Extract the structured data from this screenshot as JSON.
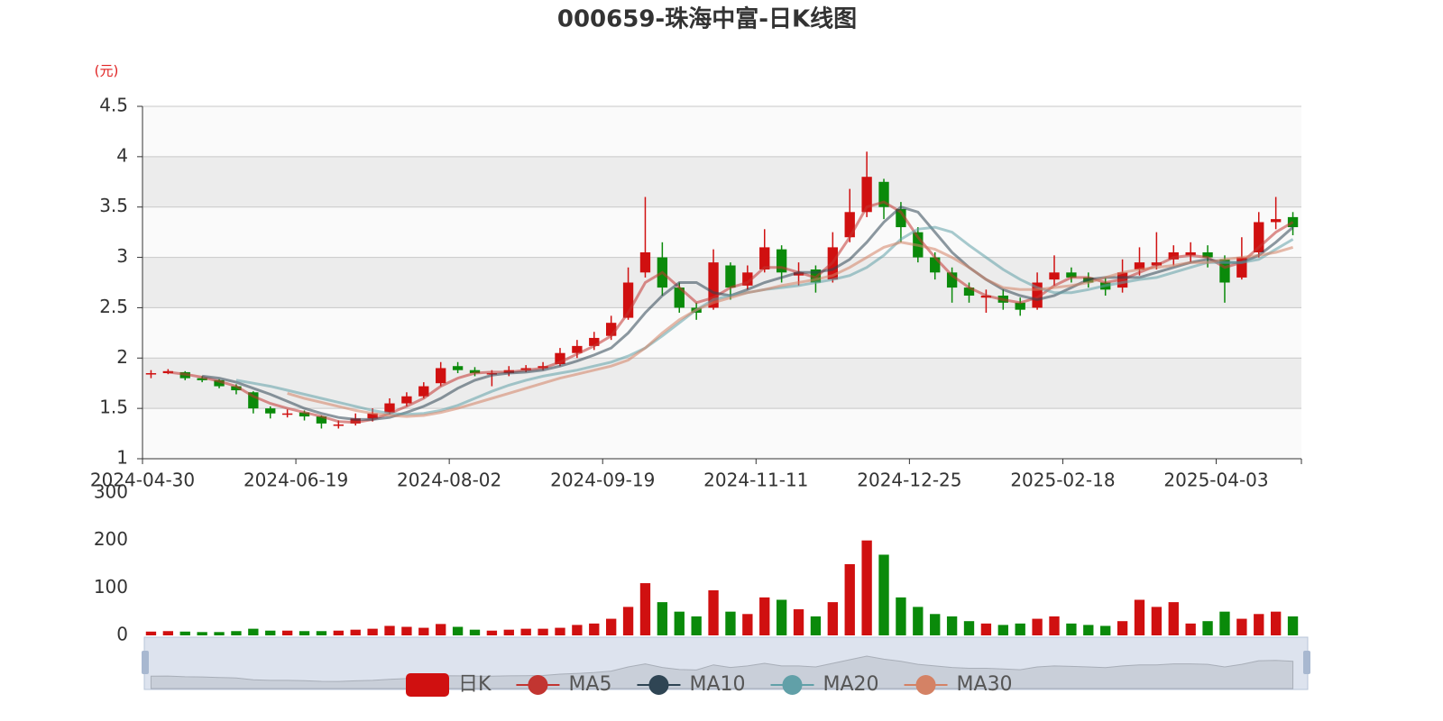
{
  "chart_data": {
    "type": "candlestick",
    "title": "000659-珠海中富-日K线图",
    "unit_label": "(元)",
    "categories": [
      "2024-04-30",
      null,
      null,
      null,
      null,
      null,
      null,
      null,
      null,
      "2024-06-19",
      null,
      null,
      null,
      null,
      null,
      null,
      null,
      null,
      "2024-08-02",
      null,
      null,
      null,
      null,
      null,
      null,
      null,
      null,
      "2024-09-19",
      null,
      null,
      null,
      null,
      null,
      null,
      null,
      null,
      "2024-11-11",
      null,
      null,
      null,
      null,
      null,
      null,
      null,
      null,
      "2024-12-25",
      null,
      null,
      null,
      null,
      null,
      null,
      null,
      null,
      "2025-02-18",
      null,
      null,
      null,
      null,
      null,
      null,
      null,
      null,
      "2025-04-03",
      null,
      null,
      null,
      null
    ],
    "ylim": [
      1,
      4.5
    ],
    "yticks": [
      1,
      1.5,
      2,
      2.5,
      3,
      3.5,
      4,
      4.5
    ],
    "grid": true,
    "candles": {
      "name": "日K",
      "color_up": "#d01010",
      "color_down": "#0a8a0a",
      "values": [
        [
          1.84,
          1.85,
          1.8,
          1.88
        ],
        [
          1.85,
          1.87,
          1.84,
          1.89
        ],
        [
          1.86,
          1.8,
          1.78,
          1.87
        ],
        [
          1.8,
          1.78,
          1.76,
          1.82
        ],
        [
          1.78,
          1.72,
          1.7,
          1.79
        ],
        [
          1.72,
          1.68,
          1.64,
          1.74
        ],
        [
          1.66,
          1.5,
          1.45,
          1.67
        ],
        [
          1.5,
          1.45,
          1.4,
          1.52
        ],
        [
          1.44,
          1.45,
          1.41,
          1.49
        ],
        [
          1.46,
          1.42,
          1.38,
          1.48
        ],
        [
          1.42,
          1.35,
          1.3,
          1.43
        ],
        [
          1.33,
          1.34,
          1.3,
          1.38
        ],
        [
          1.35,
          1.4,
          1.33,
          1.45
        ],
        [
          1.4,
          1.45,
          1.37,
          1.5
        ],
        [
          1.46,
          1.55,
          1.44,
          1.6
        ],
        [
          1.55,
          1.62,
          1.52,
          1.66
        ],
        [
          1.62,
          1.72,
          1.6,
          1.76
        ],
        [
          1.75,
          1.9,
          1.72,
          1.96
        ],
        [
          1.92,
          1.88,
          1.85,
          1.96
        ],
        [
          1.88,
          1.85,
          1.82,
          1.91
        ],
        [
          1.84,
          1.85,
          1.72,
          1.88
        ],
        [
          1.85,
          1.88,
          1.82,
          1.92
        ],
        [
          1.88,
          1.9,
          1.86,
          1.93
        ],
        [
          1.9,
          1.92,
          1.88,
          1.96
        ],
        [
          1.94,
          2.05,
          1.92,
          2.1
        ],
        [
          2.05,
          2.12,
          2.0,
          2.18
        ],
        [
          2.12,
          2.2,
          2.08,
          2.26
        ],
        [
          2.22,
          2.35,
          2.18,
          2.42
        ],
        [
          2.4,
          2.75,
          2.38,
          2.9
        ],
        [
          2.85,
          3.05,
          2.8,
          3.6
        ],
        [
          3.0,
          2.7,
          2.62,
          3.15
        ],
        [
          2.7,
          2.5,
          2.45,
          2.75
        ],
        [
          2.5,
          2.45,
          2.38,
          2.55
        ],
        [
          2.5,
          2.95,
          2.48,
          3.08
        ],
        [
          2.92,
          2.7,
          2.58,
          2.95
        ],
        [
          2.72,
          2.85,
          2.68,
          2.92
        ],
        [
          2.88,
          3.1,
          2.85,
          3.28
        ],
        [
          3.08,
          2.85,
          2.75,
          3.12
        ],
        [
          2.82,
          2.85,
          2.72,
          2.95
        ],
        [
          2.88,
          2.75,
          2.65,
          2.92
        ],
        [
          2.78,
          3.1,
          2.75,
          3.25
        ],
        [
          3.2,
          3.45,
          3.15,
          3.68
        ],
        [
          3.45,
          3.8,
          3.4,
          4.05
        ],
        [
          3.75,
          3.5,
          3.38,
          3.78
        ],
        [
          3.48,
          3.3,
          3.15,
          3.55
        ],
        [
          3.25,
          3.0,
          2.95,
          3.3
        ],
        [
          3.0,
          2.85,
          2.78,
          3.05
        ],
        [
          2.85,
          2.7,
          2.55,
          2.9
        ],
        [
          2.7,
          2.62,
          2.55,
          2.75
        ],
        [
          2.6,
          2.62,
          2.45,
          2.68
        ],
        [
          2.62,
          2.55,
          2.48,
          2.68
        ],
        [
          2.55,
          2.48,
          2.42,
          2.6
        ],
        [
          2.5,
          2.75,
          2.48,
          2.85
        ],
        [
          2.78,
          2.85,
          2.72,
          3.02
        ],
        [
          2.85,
          2.8,
          2.75,
          2.9
        ],
        [
          2.8,
          2.75,
          2.7,
          2.85
        ],
        [
          2.75,
          2.68,
          2.62,
          2.8
        ],
        [
          2.7,
          2.85,
          2.65,
          2.98
        ],
        [
          2.88,
          2.95,
          2.82,
          3.1
        ],
        [
          2.92,
          2.95,
          2.88,
          3.25
        ],
        [
          2.98,
          3.05,
          2.92,
          3.12
        ],
        [
          3.02,
          3.05,
          2.95,
          3.15
        ],
        [
          3.05,
          3.0,
          2.9,
          3.12
        ],
        [
          2.98,
          2.75,
          2.55,
          3.02
        ],
        [
          2.8,
          3.0,
          2.78,
          3.2
        ],
        [
          3.05,
          3.35,
          3.0,
          3.45
        ],
        [
          3.35,
          3.38,
          3.28,
          3.6
        ],
        [
          3.4,
          3.3,
          3.22,
          3.45
        ]
      ]
    },
    "series": [
      {
        "name": "MA5",
        "color": "#c23531",
        "values": [
          null,
          1.86,
          1.84,
          1.81,
          1.77,
          1.72,
          1.62,
          1.55,
          1.5,
          1.46,
          1.42,
          1.37,
          1.36,
          1.39,
          1.45,
          1.52,
          1.6,
          1.72,
          1.8,
          1.85,
          1.86,
          1.86,
          1.88,
          1.9,
          1.96,
          2.04,
          2.12,
          2.22,
          2.45,
          2.75,
          2.85,
          2.7,
          2.55,
          2.6,
          2.7,
          2.75,
          2.9,
          2.9,
          2.85,
          2.8,
          2.95,
          3.2,
          3.5,
          3.55,
          3.45,
          3.2,
          3.0,
          2.82,
          2.7,
          2.62,
          2.58,
          2.55,
          2.6,
          2.72,
          2.8,
          2.8,
          2.75,
          2.78,
          2.85,
          2.92,
          3.0,
          3.02,
          3.0,
          2.9,
          2.95,
          3.1,
          3.25,
          3.35
        ]
      },
      {
        "name": "MA10",
        "color": "#2f4554",
        "values": [
          null,
          null,
          null,
          1.82,
          1.8,
          1.76,
          1.7,
          1.64,
          1.57,
          1.5,
          1.45,
          1.41,
          1.39,
          1.39,
          1.41,
          1.46,
          1.52,
          1.6,
          1.7,
          1.78,
          1.83,
          1.85,
          1.86,
          1.88,
          1.92,
          1.97,
          2.03,
          2.1,
          2.25,
          2.45,
          2.62,
          2.75,
          2.75,
          2.65,
          2.62,
          2.68,
          2.75,
          2.8,
          2.85,
          2.85,
          2.88,
          2.98,
          3.15,
          3.35,
          3.5,
          3.45,
          3.25,
          3.05,
          2.9,
          2.78,
          2.68,
          2.62,
          2.58,
          2.62,
          2.7,
          2.78,
          2.8,
          2.8,
          2.8,
          2.85,
          2.9,
          2.95,
          2.98,
          2.95,
          2.95,
          3.02,
          3.15,
          3.3
        ]
      },
      {
        "name": "MA20",
        "color": "#61a0a8",
        "values": [
          null,
          null,
          null,
          null,
          null,
          1.78,
          1.75,
          1.72,
          1.68,
          1.64,
          1.6,
          1.56,
          1.52,
          1.48,
          1.45,
          1.44,
          1.45,
          1.48,
          1.53,
          1.6,
          1.67,
          1.73,
          1.78,
          1.82,
          1.85,
          1.88,
          1.92,
          1.96,
          2.02,
          2.1,
          2.22,
          2.35,
          2.48,
          2.58,
          2.62,
          2.65,
          2.68,
          2.7,
          2.72,
          2.75,
          2.78,
          2.82,
          2.9,
          3.02,
          3.18,
          3.28,
          3.3,
          3.25,
          3.12,
          3.0,
          2.88,
          2.78,
          2.7,
          2.65,
          2.65,
          2.68,
          2.72,
          2.75,
          2.78,
          2.8,
          2.85,
          2.9,
          2.95,
          2.95,
          2.95,
          2.98,
          3.08,
          3.18
        ]
      },
      {
        "name": "MA30",
        "color": "#d48265",
        "values": [
          null,
          null,
          null,
          null,
          null,
          null,
          null,
          null,
          1.65,
          1.6,
          1.56,
          1.52,
          1.48,
          1.45,
          1.43,
          1.42,
          1.43,
          1.46,
          1.5,
          1.55,
          1.6,
          1.65,
          1.7,
          1.75,
          1.8,
          1.84,
          1.88,
          1.92,
          1.98,
          2.1,
          2.25,
          2.38,
          2.48,
          2.55,
          2.6,
          2.65,
          2.68,
          2.72,
          2.75,
          2.78,
          2.82,
          2.9,
          3.0,
          3.1,
          3.15,
          3.12,
          3.08,
          3.0,
          2.9,
          2.78,
          2.7,
          2.68,
          2.68,
          2.7,
          2.72,
          2.75,
          2.8,
          2.85,
          2.88,
          2.9,
          2.92,
          2.95,
          2.95,
          2.98,
          3.0,
          3.02,
          3.05,
          3.1
        ]
      }
    ],
    "volume": {
      "ylim": [
        0,
        300
      ],
      "yticks": [
        0,
        100,
        200,
        300
      ],
      "values": [
        8,
        9,
        8,
        7,
        7,
        9,
        14,
        10,
        10,
        9,
        9,
        10,
        12,
        14,
        20,
        18,
        16,
        24,
        18,
        12,
        10,
        12,
        14,
        14,
        16,
        22,
        25,
        35,
        60,
        110,
        70,
        50,
        40,
        95,
        50,
        45,
        80,
        75,
        55,
        40,
        70,
        150,
        200,
        170,
        80,
        60,
        45,
        40,
        30,
        25,
        22,
        25,
        35,
        40,
        25,
        22,
        20,
        30,
        75,
        60,
        70,
        25,
        30,
        50,
        35,
        45,
        50,
        40
      ]
    }
  }
}
